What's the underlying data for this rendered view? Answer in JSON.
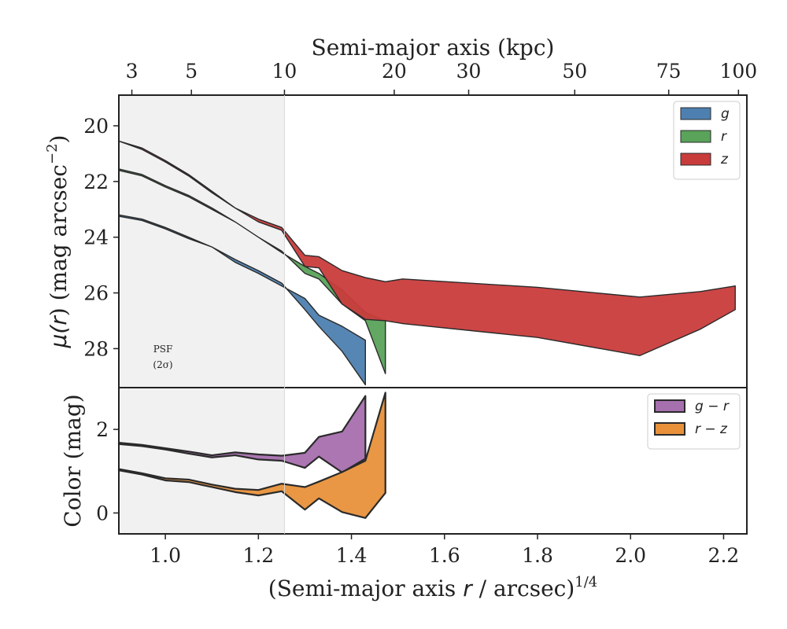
{
  "colors": {
    "g": "#4d80b0",
    "r": "#5aa35a",
    "z": "#c93c3c",
    "g_minus_r": "#a66fae",
    "r_minus_z": "#e8913a",
    "psf_shade": "#f1f1f1",
    "edge": "#2a2a2a"
  },
  "labels": {
    "xlabel_main": "(Semi-major axis ",
    "xlabel_var": "r",
    "xlabel_tail": " / arcsec)",
    "xlabel_sup": "1/4",
    "xlabel_top": "Semi-major axis (kpc)",
    "ylabel_top_pre": "μ(",
    "ylabel_top_var": "r",
    "ylabel_top_post": ") (mag arcsec",
    "ylabel_top_sup": "−2",
    "ylabel_top_end": ")",
    "ylabel_bottom": "Color (mag)",
    "psf_line1": "PSF",
    "psf_line2": "(2σ)"
  },
  "chart_data": [
    {
      "type": "area",
      "panel": "surface-brightness",
      "xlabel": "(Semi-major axis r / arcsec)^1/4",
      "xlabel_top": "Semi-major axis (kpc)",
      "ylabel": "μ(r) (mag arcsec^−2)",
      "xlim": [
        0.9,
        2.25
      ],
      "ylim": [
        29.4,
        18.9
      ],
      "y_inverted": true,
      "x_ticks": [
        "1.0",
        "1.2",
        "1.4",
        "1.6",
        "1.8",
        "2.0",
        "2.2"
      ],
      "y_ticks": [
        "20",
        "22",
        "24",
        "26",
        "28"
      ],
      "top_ticks": [
        "3",
        "5",
        "10",
        "20",
        "30",
        "50",
        "75",
        "100"
      ],
      "top_tick_x": [
        0.928,
        1.056,
        1.256,
        1.492,
        1.652,
        1.88,
        2.082,
        2.232
      ],
      "psf_region": [
        0.9,
        1.256
      ],
      "legend": [
        "g",
        "r",
        "z"
      ],
      "legend_position": "top-right",
      "series": [
        {
          "name": "g",
          "upper_x": [
            0.9,
            0.95,
            1.0,
            1.05,
            1.1,
            1.15,
            1.2,
            1.25,
            1.3,
            1.33,
            1.38,
            1.43
          ],
          "upper_y": [
            23.2,
            23.35,
            23.65,
            24.0,
            24.35,
            24.9,
            25.3,
            25.75,
            26.2,
            26.8,
            27.2,
            27.7
          ],
          "lower_x": [
            1.43,
            1.38,
            1.33,
            1.3,
            1.25,
            1.2,
            1.15,
            1.1,
            1.05,
            1.0,
            0.95,
            0.9
          ],
          "lower_y": [
            29.3,
            28.1,
            27.2,
            26.6,
            25.65,
            25.2,
            24.8,
            24.35,
            24.05,
            23.7,
            23.4,
            23.25
          ]
        },
        {
          "name": "r",
          "upper_x": [
            0.9,
            0.95,
            1.0,
            1.05,
            1.1,
            1.15,
            1.2,
            1.25,
            1.3,
            1.33,
            1.38,
            1.43,
            1.473
          ],
          "upper_y": [
            21.55,
            21.75,
            22.15,
            22.5,
            22.95,
            23.45,
            24.0,
            24.55,
            25.05,
            25.3,
            25.9,
            26.7,
            27.0
          ],
          "lower_x": [
            1.473,
            1.43,
            1.38,
            1.33,
            1.3,
            1.25,
            1.2,
            1.15,
            1.1,
            1.05,
            1.0,
            0.95,
            0.9
          ],
          "lower_y": [
            28.9,
            27.0,
            26.4,
            25.5,
            25.3,
            24.5,
            24.0,
            23.45,
            23.0,
            22.55,
            22.2,
            21.8,
            21.6
          ]
        },
        {
          "name": "z",
          "upper_x": [
            0.9,
            0.95,
            1.0,
            1.05,
            1.1,
            1.15,
            1.2,
            1.25,
            1.3,
            1.33,
            1.38,
            1.43,
            1.473,
            1.51,
            1.8,
            2.02,
            2.15,
            2.225
          ],
          "upper_y": [
            20.55,
            20.8,
            21.25,
            21.75,
            22.35,
            22.95,
            23.35,
            23.65,
            24.65,
            24.7,
            25.2,
            25.45,
            25.6,
            25.5,
            25.8,
            26.15,
            25.95,
            25.75
          ],
          "lower_x": [
            2.225,
            2.15,
            2.02,
            1.8,
            1.51,
            1.473,
            1.43,
            1.38,
            1.33,
            1.3,
            1.25,
            1.2,
            1.15,
            1.1,
            1.05,
            1.0,
            0.95,
            0.9
          ],
          "lower_y": [
            26.6,
            27.3,
            28.25,
            27.6,
            27.1,
            27.0,
            26.95,
            26.4,
            25.1,
            25.05,
            23.75,
            23.45,
            22.95,
            22.4,
            21.8,
            21.3,
            20.85,
            20.55
          ]
        }
      ]
    },
    {
      "type": "area",
      "panel": "color",
      "ylabel": "Color (mag)",
      "xlim": [
        0.9,
        2.25
      ],
      "ylim": [
        -0.5,
        3.0
      ],
      "x_ticks": [
        "1.0",
        "1.2",
        "1.4",
        "1.6",
        "1.8",
        "2.0",
        "2.2"
      ],
      "y_ticks": [
        "0",
        "2"
      ],
      "legend": [
        "g − r",
        "r − z"
      ],
      "legend_position": "top-right",
      "series": [
        {
          "name": "g − r",
          "upper_x": [
            0.9,
            0.95,
            1.0,
            1.05,
            1.1,
            1.15,
            1.2,
            1.25,
            1.3,
            1.33,
            1.38,
            1.43
          ],
          "upper_y": [
            1.68,
            1.63,
            1.55,
            1.47,
            1.38,
            1.45,
            1.4,
            1.37,
            1.44,
            1.82,
            1.95,
            2.8
          ],
          "lower_x": [
            1.43,
            1.38,
            1.33,
            1.3,
            1.25,
            1.2,
            1.15,
            1.1,
            1.05,
            1.0,
            0.95,
            0.9
          ],
          "lower_y": [
            1.3,
            0.97,
            1.35,
            1.08,
            1.25,
            1.28,
            1.38,
            1.33,
            1.42,
            1.52,
            1.6,
            1.65
          ]
        },
        {
          "name": "r − z",
          "upper_x": [
            0.9,
            0.95,
            1.0,
            1.05,
            1.1,
            1.15,
            1.2,
            1.25,
            1.3,
            1.33,
            1.38,
            1.43,
            1.473
          ],
          "upper_y": [
            1.05,
            0.95,
            0.83,
            0.8,
            0.68,
            0.58,
            0.55,
            0.7,
            0.62,
            0.75,
            0.98,
            1.25,
            2.88
          ],
          "lower_x": [
            1.473,
            1.43,
            1.38,
            1.33,
            1.3,
            1.25,
            1.2,
            1.15,
            1.1,
            1.05,
            1.0,
            0.95,
            0.9
          ],
          "lower_y": [
            0.48,
            -0.12,
            0.02,
            0.35,
            0.08,
            0.52,
            0.42,
            0.5,
            0.62,
            0.74,
            0.78,
            0.92,
            1.02
          ]
        }
      ]
    }
  ]
}
